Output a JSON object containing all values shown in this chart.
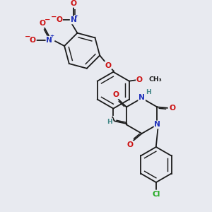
{
  "bg_color": "#e8eaf0",
  "bond_color": "#1a1a1a",
  "atom_colors": {
    "O": "#cc1111",
    "N": "#2233bb",
    "Cl": "#22aa22",
    "H": "#448888",
    "C": "#1a1a1a"
  },
  "lw": 1.3,
  "dbo": 0.055,
  "fs": 7.2
}
